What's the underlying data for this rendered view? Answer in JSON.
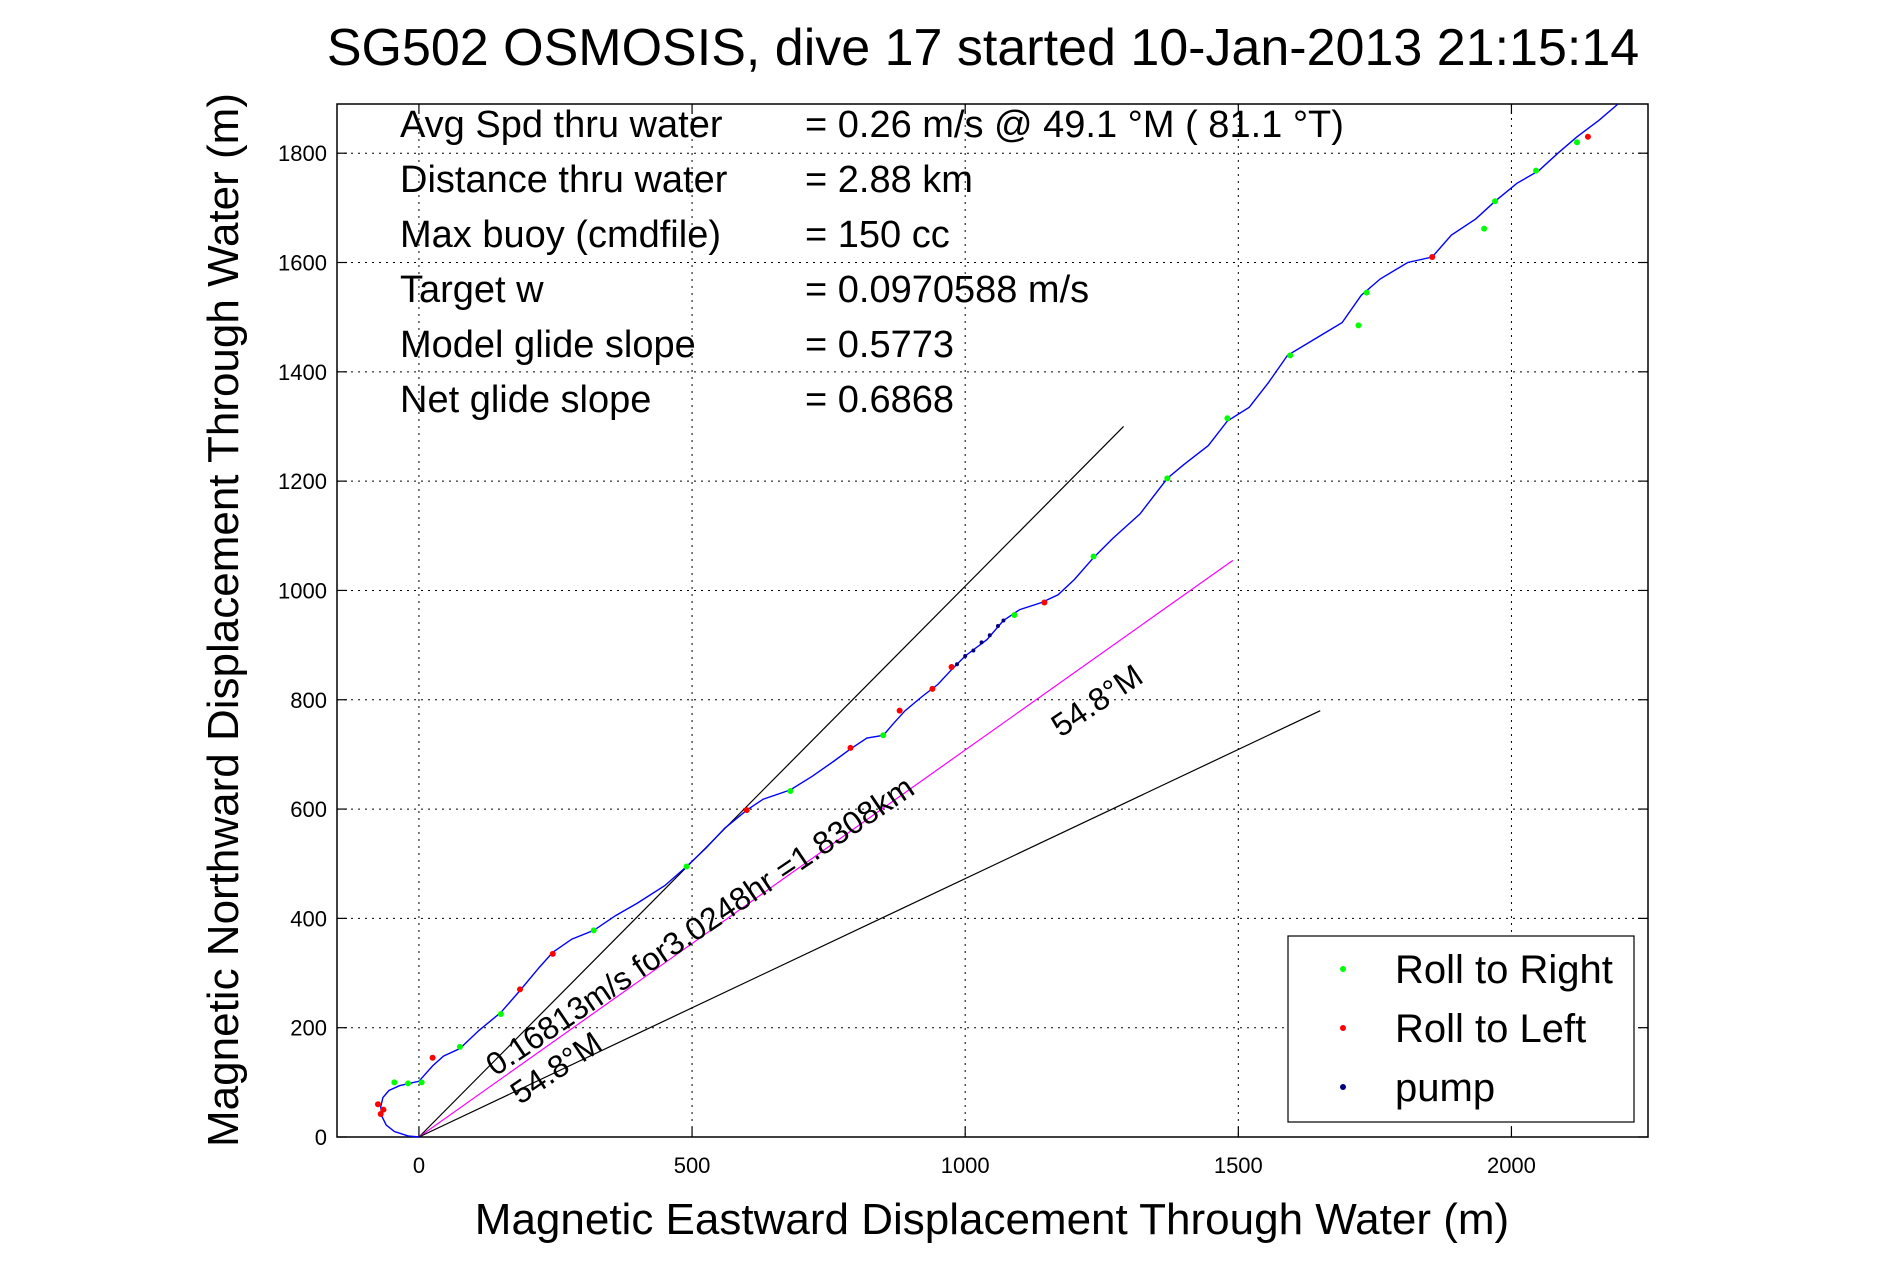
{
  "chart_data": {
    "type": "line",
    "title": "SG502 OSMOSIS, dive 17 started 10-Jan-2013 21:15:14",
    "xlabel": "Magnetic Eastward Displacement Through Water (m)",
    "ylabel": "Magnetic Northward Displacement Through Water (m)",
    "xlim": [
      -150,
      2250
    ],
    "ylim": [
      0,
      1890
    ],
    "xticks": [
      0,
      500,
      1000,
      1500,
      2000
    ],
    "yticks": [
      0,
      200,
      400,
      600,
      800,
      1000,
      1200,
      1400,
      1600,
      1800
    ],
    "grid": true,
    "legend_position": "lower-right",
    "stats": [
      {
        "label": "Avg Spd thru water",
        "value": "=  0.26 m/s @  49.1 °M ( 81.1 °T)"
      },
      {
        "label": "Distance thru water",
        "value": "=  2.88 km"
      },
      {
        "label": "Max buoy (cmdfile)",
        "value": "= 150 cc"
      },
      {
        "label": "Target w",
        "value": "= 0.0970588 m/s"
      },
      {
        "label": "Model glide slope",
        "value": "= 0.5773"
      },
      {
        "label": "Net glide slope",
        "value": "= 0.6868"
      }
    ],
    "track": [
      [
        0,
        0
      ],
      [
        -20,
        2
      ],
      [
        -45,
        10
      ],
      [
        -60,
        22
      ],
      [
        -68,
        38
      ],
      [
        -70,
        55
      ],
      [
        -66,
        72
      ],
      [
        -55,
        85
      ],
      [
        -35,
        94
      ],
      [
        0,
        102
      ],
      [
        25,
        130
      ],
      [
        45,
        148
      ],
      [
        75,
        162
      ],
      [
        110,
        195
      ],
      [
        150,
        228
      ],
      [
        185,
        268
      ],
      [
        220,
        310
      ],
      [
        245,
        338
      ],
      [
        280,
        362
      ],
      [
        320,
        378
      ],
      [
        360,
        405
      ],
      [
        400,
        428
      ],
      [
        450,
        460
      ],
      [
        490,
        495
      ],
      [
        525,
        528
      ],
      [
        560,
        565
      ],
      [
        600,
        598
      ],
      [
        630,
        618
      ],
      [
        680,
        635
      ],
      [
        720,
        660
      ],
      [
        760,
        688
      ],
      [
        790,
        710
      ],
      [
        820,
        730
      ],
      [
        850,
        735
      ],
      [
        870,
        758
      ],
      [
        890,
        780
      ],
      [
        920,
        805
      ],
      [
        950,
        828
      ],
      [
        975,
        855
      ],
      [
        1000,
        880
      ],
      [
        1040,
        910
      ],
      [
        1070,
        945
      ],
      [
        1100,
        965
      ],
      [
        1140,
        978
      ],
      [
        1170,
        992
      ],
      [
        1200,
        1020
      ],
      [
        1235,
        1060
      ],
      [
        1270,
        1095
      ],
      [
        1320,
        1140
      ],
      [
        1370,
        1205
      ],
      [
        1400,
        1230
      ],
      [
        1445,
        1265
      ],
      [
        1480,
        1310
      ],
      [
        1520,
        1335
      ],
      [
        1555,
        1380
      ],
      [
        1590,
        1430
      ],
      [
        1640,
        1460
      ],
      [
        1690,
        1490
      ],
      [
        1725,
        1540
      ],
      [
        1760,
        1570
      ],
      [
        1810,
        1600
      ],
      [
        1855,
        1610
      ],
      [
        1890,
        1650
      ],
      [
        1935,
        1680
      ],
      [
        1970,
        1712
      ],
      [
        2010,
        1745
      ],
      [
        2050,
        1768
      ],
      [
        2085,
        1800
      ],
      [
        2120,
        1830
      ],
      [
        2160,
        1860
      ],
      [
        2195,
        1890
      ]
    ],
    "roll_right": [
      [
        -45,
        100
      ],
      [
        -20,
        98
      ],
      [
        5,
        100
      ],
      [
        75,
        165
      ],
      [
        150,
        225
      ],
      [
        320,
        378
      ],
      [
        490,
        495
      ],
      [
        680,
        633
      ],
      [
        850,
        735
      ],
      [
        1090,
        955
      ],
      [
        1235,
        1062
      ],
      [
        1370,
        1205
      ],
      [
        1480,
        1315
      ],
      [
        1595,
        1430
      ],
      [
        1720,
        1485
      ],
      [
        1735,
        1545
      ],
      [
        1950,
        1662
      ],
      [
        1970,
        1712
      ],
      [
        2045,
        1768
      ],
      [
        2120,
        1820
      ]
    ],
    "roll_left": [
      [
        -75,
        60
      ],
      [
        -65,
        50
      ],
      [
        -70,
        42
      ],
      [
        25,
        145
      ],
      [
        185,
        270
      ],
      [
        245,
        335
      ],
      [
        600,
        598
      ],
      [
        790,
        712
      ],
      [
        880,
        780
      ],
      [
        940,
        820
      ],
      [
        975,
        860
      ],
      [
        1145,
        978
      ],
      [
        1855,
        1610
      ],
      [
        2140,
        1830
      ]
    ],
    "pump": [
      [
        985,
        865
      ],
      [
        1000,
        880
      ],
      [
        1015,
        890
      ],
      [
        1030,
        905
      ],
      [
        1045,
        918
      ],
      [
        1060,
        935
      ],
      [
        1070,
        945
      ]
    ],
    "reference_lines": [
      {
        "from": [
          0,
          0
        ],
        "to": [
          1290,
          1300
        ],
        "color": "#000000"
      },
      {
        "from": [
          0,
          0
        ],
        "to": [
          1490,
          1055
        ],
        "color": "#ff00ff"
      },
      {
        "from": [
          0,
          0
        ],
        "to": [
          1650,
          780
        ],
        "color": "#000000"
      }
    ],
    "annotations": [
      {
        "text": "0.16813m/s for3.0248hr =1.8308km",
        "x": 140,
        "y": 110,
        "angle_deg": -34
      },
      {
        "text": "54.8°M",
        "x": 185,
        "y": 58,
        "angle_deg": -34
      },
      {
        "text": "54.8°M",
        "x": 1175,
        "y": 730,
        "angle_deg": -34
      }
    ],
    "series": [
      {
        "name": "Roll to Right",
        "color": "#00ff00"
      },
      {
        "name": "Roll to Left",
        "color": "#ff0000"
      },
      {
        "name": "pump",
        "color": "#000080"
      }
    ],
    "colors": {
      "track": "#0000ff",
      "right": "#00ff00",
      "left": "#ff0000",
      "pump": "#000080",
      "grid": "#000000"
    }
  }
}
